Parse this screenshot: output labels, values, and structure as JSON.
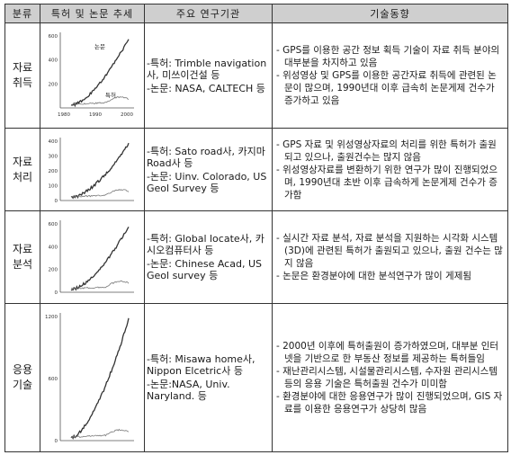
{
  "headers": [
    "분류",
    "특허 및 논문 추세",
    "주요 연구기관",
    "기술동향"
  ],
  "rows": [
    {
      "category": "자료\n취득",
      "chart": {
        "yticks": [
          "600",
          "400",
          "200"
        ],
        "xticks": [
          "1980",
          "1990",
          "2000"
        ],
        "labels": [
          "논문",
          "특허"
        ]
      },
      "institutions": [
        "-특허: Trimble navigation사, 미쓰이건설 등",
        "-논문: NASA, CALTECH 등"
      ],
      "trends": [
        "- GPS를 이용한 공간 정보 획득 기술이 자료 취득 분야의 대부분을 차지하고 있음",
        "- 위성영상 및 GPS를 이용한 공간자료 취득에 관련된 논문이 많으며, 1990년대 이후 급속히 논문게제 건수가 증가하고 있음"
      ]
    },
    {
      "category": "자료\n처리",
      "chart": {
        "yticks": [
          "400",
          "300",
          "200",
          "100",
          "0"
        ],
        "xticks": [],
        "labels": []
      },
      "institutions": [
        "-특허: Sato road사, 카지마 Road사 등",
        "-논문: Uinv. Colorado, US Geol Survey 등"
      ],
      "trends": [
        "- GPS 자료 및 위성영상자료의 처리를 위한 특허가 출원되고 있으나, 출원건수는 많지 않음",
        "- 위성영상자료를 변환하기 위한 연구가 많이 진행되었으며, 1990년대 초반 이후 급속하게 논문게제 건수가 증가함"
      ]
    },
    {
      "category": "자료\n분석",
      "chart": {
        "yticks": [
          "600",
          "400",
          "200",
          "0"
        ],
        "xticks": [],
        "labels": []
      },
      "institutions": [
        "-특허: Global locate사, 카시오컴퓨터사 등",
        "-논문: Chinese Acad, US Geol survey 등"
      ],
      "trends": [
        "- 실시간 자료 분석, 자료 분석을 지원하는 시각화 시스템(3D)에 관련된 특허가 출원되고 있으나, 출원 건수는 많지 않음",
        "- 논문은 환경분야에 대한 분석연구가 많이 게제됨"
      ]
    },
    {
      "category": "응용\n기술",
      "chart": {
        "yticks": [
          "1200",
          "600",
          "0"
        ],
        "xticks": [],
        "labels": []
      },
      "institutions": [
        "-특허: Misawa home사, Nippon Elcetric사 등",
        "-논문:NASA, Univ. Naryland. 등"
      ],
      "trends": [
        "- 2000년 이후에 특허출원이 증가하였으며, 대부분 인터넷을 기반으로 한 부동산 정보를 제공하는 특허들임",
        "- 재난관리시스템, 시설물관리시스템, 수자원 관리시스템 등의 응용 기술은 특허출원 건수가 미미함",
        "- 환경분야에 대한 응용연구가 많이 진행되었으며, GIS 자료를 이용한 응용연구가 상당히 많음"
      ]
    }
  ]
}
